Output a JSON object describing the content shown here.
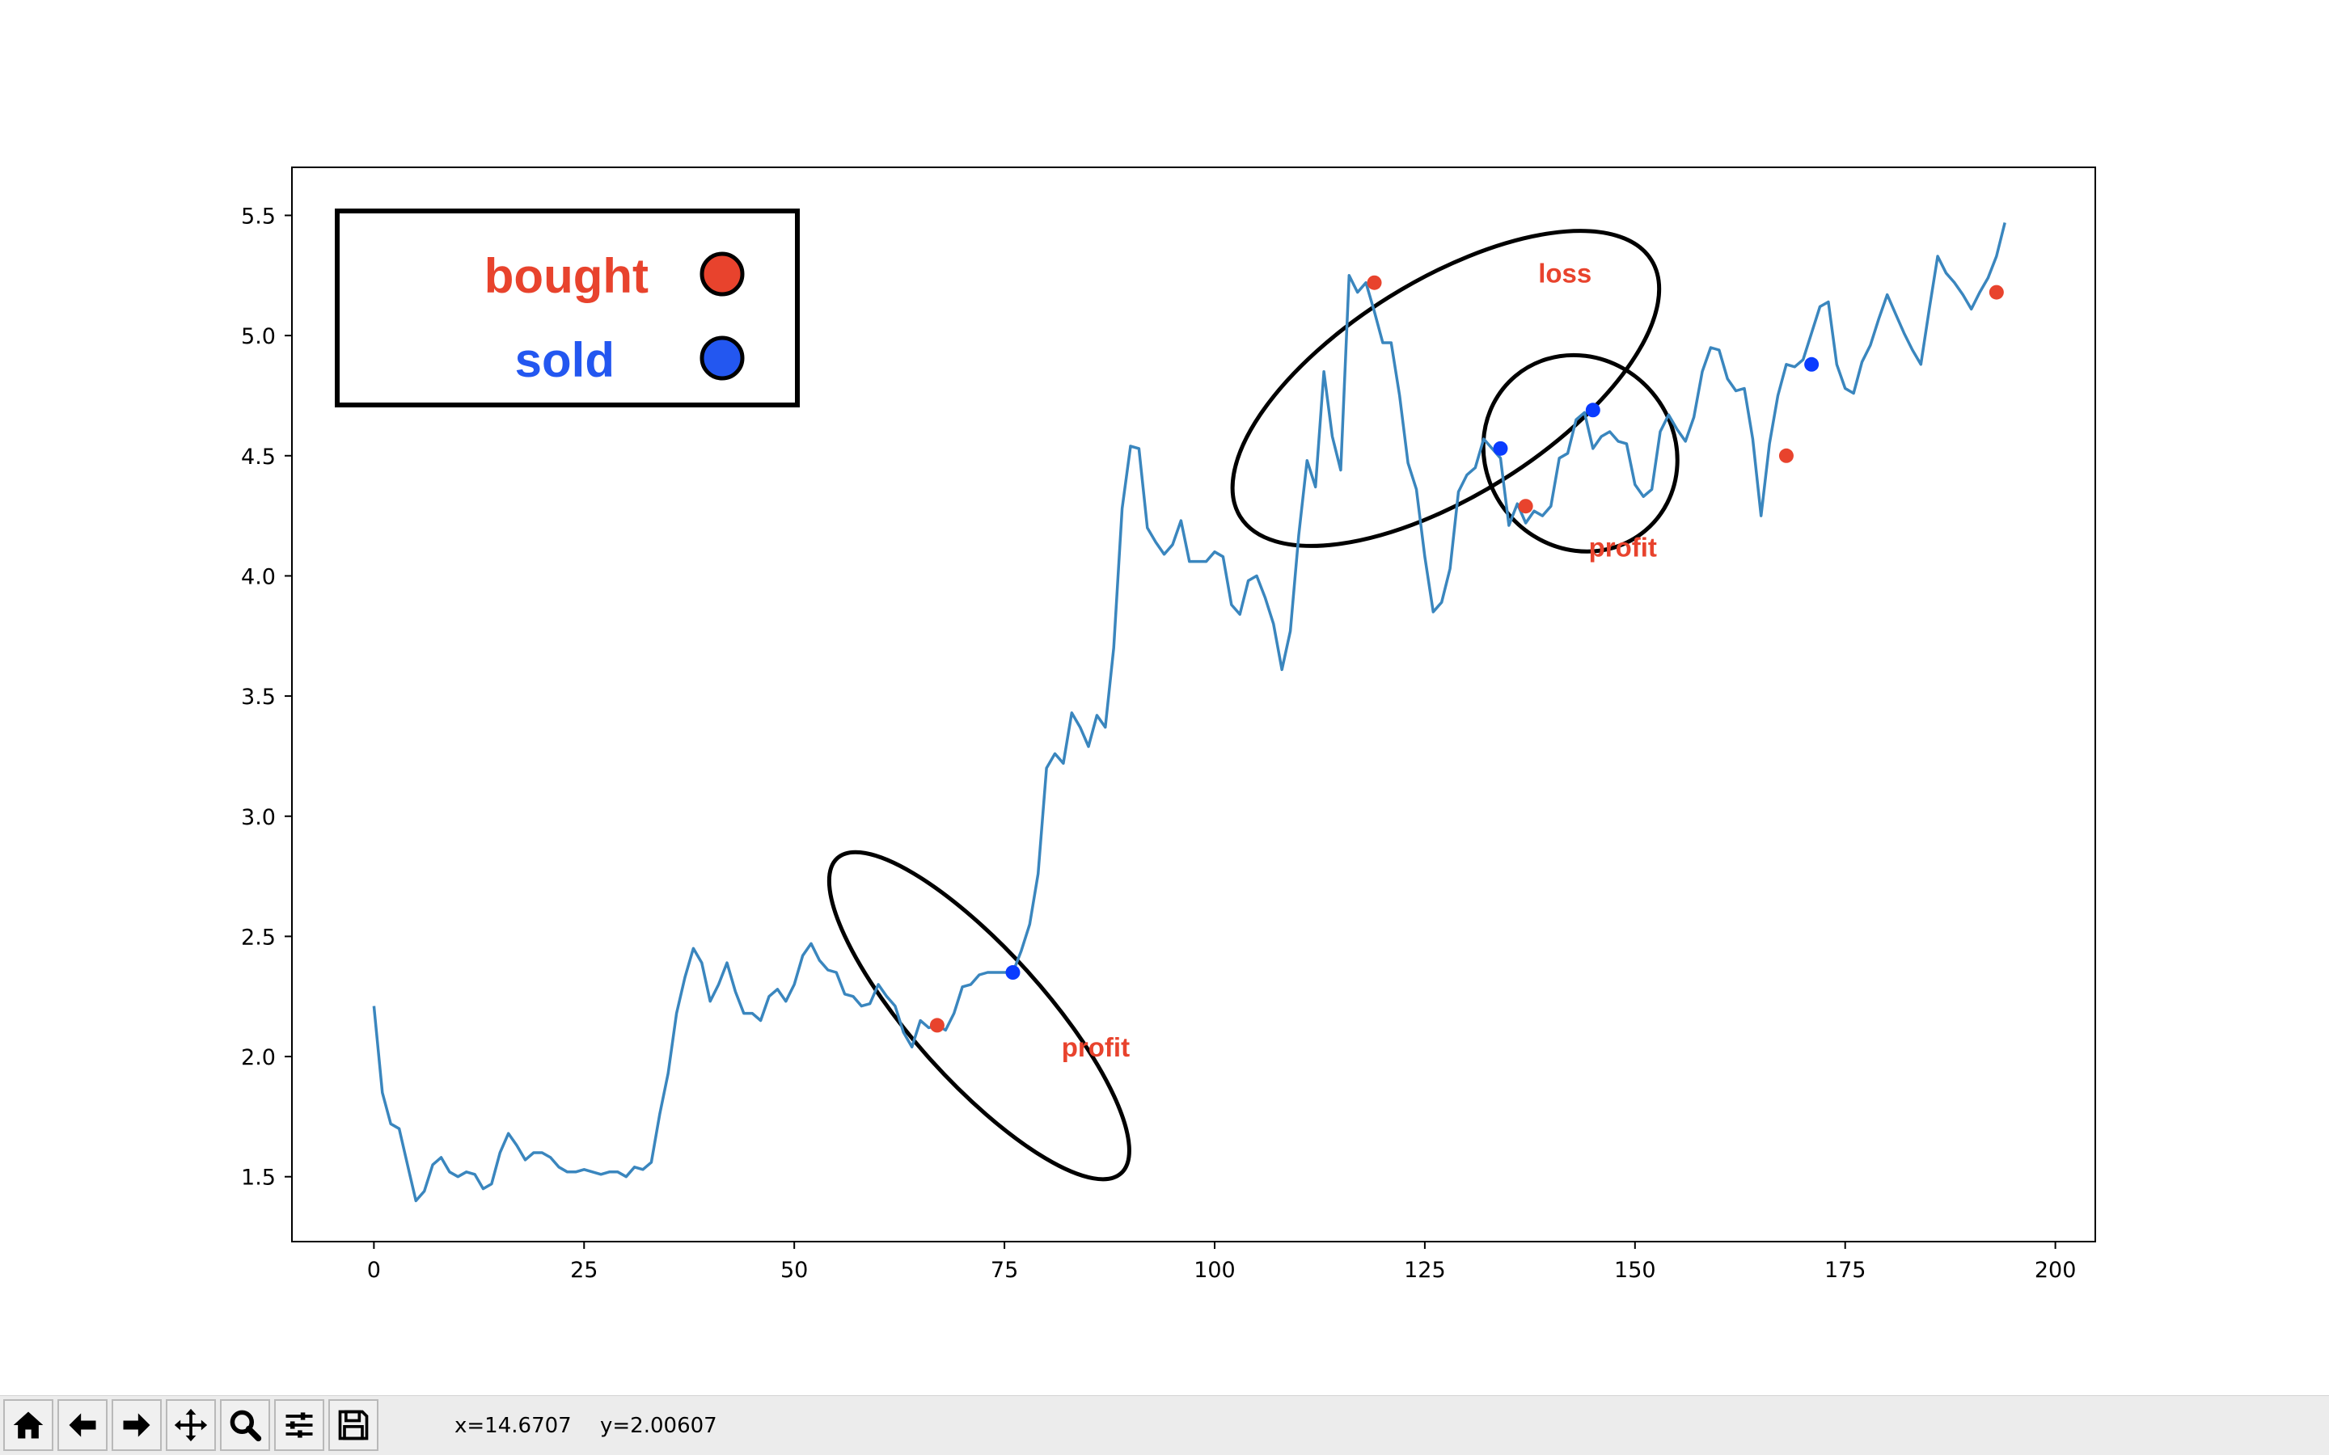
{
  "toolbar": {
    "buttons": [
      {
        "name": "home-icon",
        "label": "Home"
      },
      {
        "name": "back-arrow-icon",
        "label": "Back"
      },
      {
        "name": "forward-arrow-icon",
        "label": "Forward"
      },
      {
        "name": "pan-move-icon",
        "label": "Pan"
      },
      {
        "name": "zoom-magnifier-icon",
        "label": "Zoom"
      },
      {
        "name": "configure-subplots-icon",
        "label": "Subplots"
      },
      {
        "name": "save-floppy-icon",
        "label": "Save"
      }
    ],
    "coord_x": "x=14.6707",
    "coord_y": "y=2.00607"
  },
  "chart_data": {
    "type": "line",
    "title": "",
    "xlabel": "",
    "ylabel": "",
    "xlim": [
      -9.75,
      204.75
    ],
    "ylim": [
      1.23,
      5.7
    ],
    "xticks": [
      0,
      25,
      50,
      75,
      100,
      125,
      150,
      175,
      200
    ],
    "yticks": [
      1.5,
      2.0,
      2.5,
      3.0,
      3.5,
      4.0,
      4.5,
      5.0,
      5.5
    ],
    "line_color": "#3a86be",
    "series": [
      {
        "x_start": 0,
        "x_step": 1,
        "values": [
          2.21,
          1.85,
          1.72,
          1.7,
          1.55,
          1.4,
          1.44,
          1.55,
          1.58,
          1.52,
          1.5,
          1.52,
          1.51,
          1.45,
          1.47,
          1.6,
          1.68,
          1.63,
          1.57,
          1.6,
          1.6,
          1.58,
          1.54,
          1.52,
          1.52,
          1.53,
          1.52,
          1.51,
          1.52,
          1.52,
          1.5,
          1.54,
          1.53,
          1.56,
          1.76,
          1.93,
          2.18,
          2.33,
          2.45,
          2.39,
          2.23,
          2.3,
          2.39,
          2.27,
          2.18,
          2.18,
          2.15,
          2.25,
          2.28,
          2.23,
          2.3,
          2.42,
          2.47,
          2.4,
          2.36,
          2.35,
          2.26,
          2.25,
          2.21,
          2.22,
          2.3,
          2.25,
          2.21,
          2.1,
          2.04,
          2.15,
          2.12,
          2.13,
          2.11,
          2.18,
          2.29,
          2.3,
          2.34,
          2.35,
          2.35,
          2.35,
          2.35,
          2.44,
          2.55,
          2.76,
          3.2,
          3.26,
          3.22,
          3.43,
          3.37,
          3.29,
          3.42,
          3.37,
          3.7,
          4.28,
          4.54,
          4.53,
          4.2,
          4.14,
          4.09,
          4.13,
          4.23,
          4.06,
          4.06,
          4.06,
          4.1,
          4.08,
          3.88,
          3.84,
          3.98,
          4.0,
          3.91,
          3.8,
          3.61,
          3.77,
          4.17,
          4.48,
          4.37,
          4.85,
          4.58,
          4.44,
          5.25,
          5.18,
          5.22,
          5.1,
          4.97,
          4.97,
          4.75,
          4.47,
          4.36,
          4.08,
          3.85,
          3.89,
          4.03,
          4.35,
          4.42,
          4.45,
          4.57,
          4.53,
          4.49,
          4.21,
          4.3,
          4.22,
          4.27,
          4.25,
          4.29,
          4.49,
          4.51,
          4.65,
          4.68,
          4.53,
          4.58,
          4.6,
          4.56,
          4.55,
          4.38,
          4.33,
          4.36,
          4.6,
          4.67,
          4.61,
          4.56,
          4.66,
          4.85,
          4.95,
          4.94,
          4.82,
          4.77,
          4.78,
          4.57,
          4.25,
          4.55,
          4.75,
          4.88,
          4.87,
          4.9,
          5.01,
          5.12,
          5.14,
          4.88,
          4.78,
          4.76,
          4.89,
          4.96,
          5.07,
          5.17,
          5.09,
          5.01,
          4.94,
          4.88,
          5.11,
          5.33,
          5.26,
          5.22,
          5.17,
          5.11,
          5.18,
          5.24,
          5.33,
          5.47
        ]
      }
    ],
    "bought_points": [
      [
        67,
        2.13
      ],
      [
        119,
        5.22
      ],
      [
        137,
        4.29
      ],
      [
        168,
        4.5
      ],
      [
        193,
        5.18
      ]
    ],
    "sold_points": [
      [
        76,
        2.35
      ],
      [
        134,
        4.53
      ],
      [
        145,
        4.69
      ],
      [
        171,
        4.88
      ]
    ],
    "bought_color": "#e8432d",
    "sold_color": "#0a3cff",
    "ellipses": [
      {
        "cx": 72,
        "cy": 2.17,
        "rx": 7.8,
        "ry": 0.21,
        "tilt_deg": -42
      },
      {
        "cx": 127.5,
        "cy": 4.78,
        "rx": 12.8,
        "ry": 0.24,
        "tilt_deg": 58
      },
      {
        "cx": 143.5,
        "cy": 4.51,
        "rx": 11.2,
        "ry": 0.1,
        "tilt_deg": -40
      }
    ],
    "annotations": [
      {
        "text": "profit",
        "x": 81.8,
        "y": 2.0,
        "color": "#e8432d"
      },
      {
        "text": "loss",
        "x": 138.5,
        "y": 5.22,
        "color": "#e8432d"
      },
      {
        "text": "profit",
        "x": 144.5,
        "y": 4.08,
        "color": "#e8432d"
      }
    ],
    "legend": {
      "position": "upper-left",
      "entries": [
        {
          "label": "bought",
          "color": "#e8432d"
        },
        {
          "label": "sold",
          "color": "#2357f0"
        }
      ]
    },
    "grid": false
  }
}
